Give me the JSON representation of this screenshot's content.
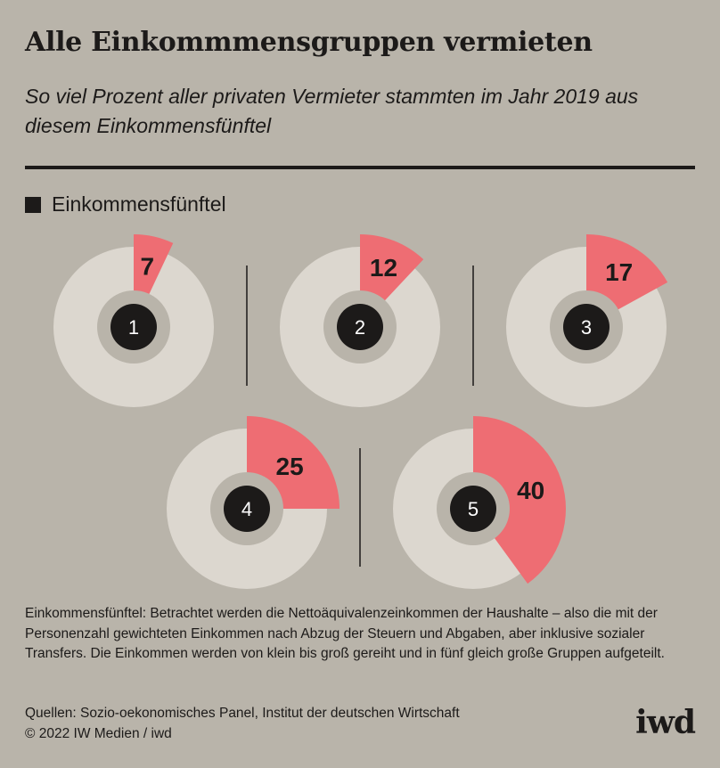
{
  "title": "Alle Einkommmensgruppen vermieten",
  "subtitle": "So viel Prozent aller privaten Vermieter stammten im Jahr 2019 aus diesem Einkommensfünftel",
  "legend": {
    "label": "Einkommensfünftel"
  },
  "colors": {
    "background": "#b9b4aa",
    "ring": "#dcd7cf",
    "highlight": "#ee6d73",
    "center_ring": "#b9b4aa",
    "center_dot": "#1c1a19"
  },
  "chart_data": {
    "type": "pie",
    "unit": "Prozent",
    "categories": [
      "1",
      "2",
      "3",
      "4",
      "5"
    ],
    "values": [
      7,
      12,
      17,
      25,
      40
    ]
  },
  "footnote": "Einkommensfünftel: Betrachtet werden die Nettoäquivalenzeinkommen der Haushalte – also die mit der Personenzahl gewichteten Einkommen nach Abzug der Steuern und Abgaben, aber inklusive sozialer Transfers. Die Einkommen werden von klein bis groß gereiht und in fünf gleich große Gruppen aufgeteilt.",
  "sources": {
    "line1": "Quellen: Sozio-oekonomisches Panel, Institut der deutschen Wirtschaft",
    "line2": "© 2022 IW Medien / iwd"
  },
  "logo": "iwd"
}
